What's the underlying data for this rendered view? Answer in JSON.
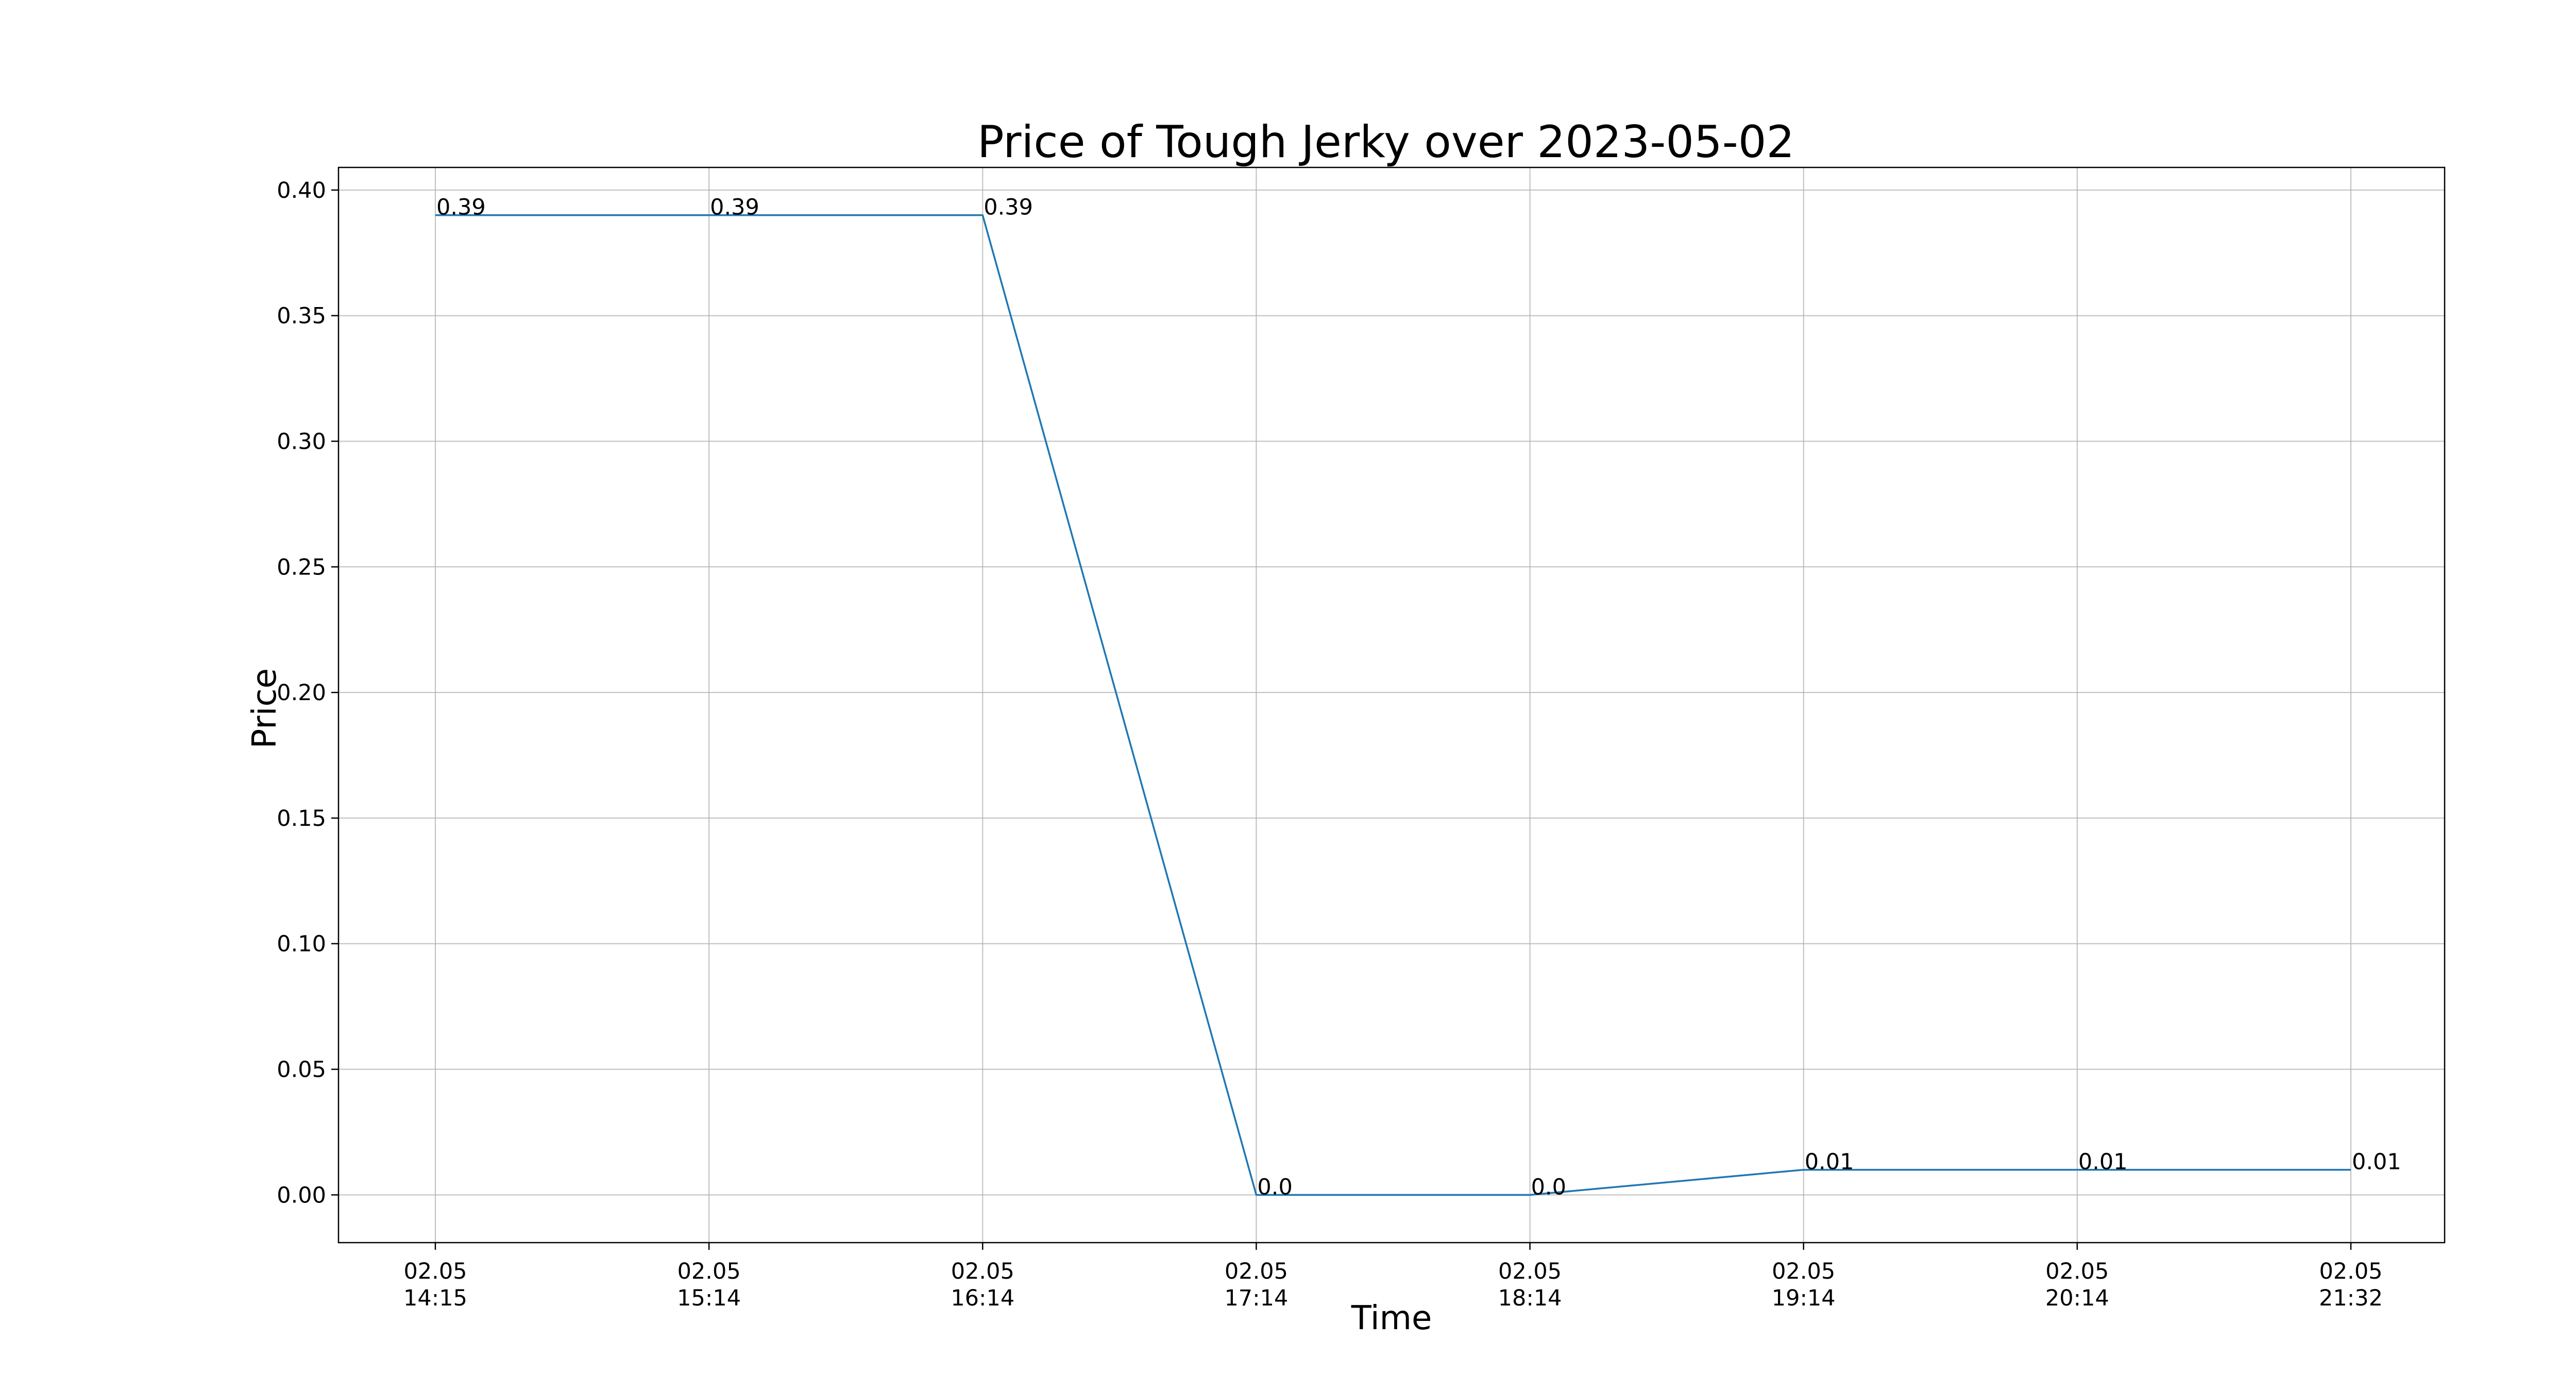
{
  "chart_data": {
    "type": "line",
    "title": "Price of Tough Jerky over 2023-05-02",
    "xlabel": "Time",
    "ylabel": "Price",
    "x": [
      [
        "02.05",
        "14:15"
      ],
      [
        "02.05",
        "15:14"
      ],
      [
        "02.05",
        "16:14"
      ],
      [
        "02.05",
        "17:14"
      ],
      [
        "02.05",
        "18:14"
      ],
      [
        "02.05",
        "19:14"
      ],
      [
        "02.05",
        "20:14"
      ],
      [
        "02.05",
        "21:32"
      ]
    ],
    "series": [
      {
        "values": [
          0.39,
          0.39,
          0.39,
          0.0,
          0.0,
          0.01,
          0.01,
          0.01
        ],
        "labels": [
          "0.39",
          "0.39",
          "0.39",
          "0.0",
          "0.0",
          "0.01",
          "0.01",
          "0.01"
        ],
        "color": "#1f77b4"
      }
    ],
    "ylim": [
      -0.019,
      0.409
    ],
    "yticks": [
      "0.00",
      "0.05",
      "0.10",
      "0.15",
      "0.20",
      "0.25",
      "0.30",
      "0.35",
      "0.40"
    ],
    "grid": true,
    "legend": "none"
  }
}
